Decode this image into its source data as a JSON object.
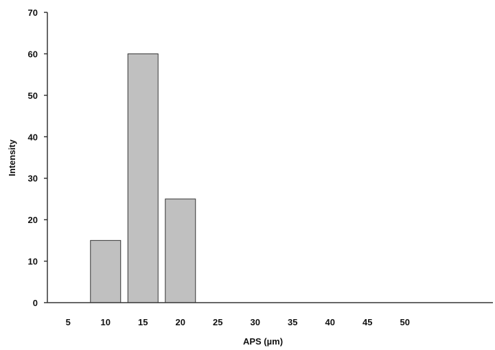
{
  "chart_data": {
    "type": "bar",
    "title": "",
    "xlabel": "APS (µm)",
    "ylabel": "Intensity",
    "categories": [
      "5",
      "10",
      "15",
      "20",
      "25",
      "30",
      "35",
      "40",
      "45",
      "50"
    ],
    "values": [
      0,
      15,
      60,
      25,
      0,
      0,
      0,
      0,
      0,
      0
    ],
    "yticks": [
      "0",
      "10",
      "20",
      "30",
      "40",
      "50",
      "60",
      "70"
    ],
    "ylim": [
      0,
      70
    ],
    "grid": false,
    "legend": "none",
    "bar_color": "#c0c0c0",
    "bar_edge_color": "#333333",
    "axis_color": "#333333"
  }
}
